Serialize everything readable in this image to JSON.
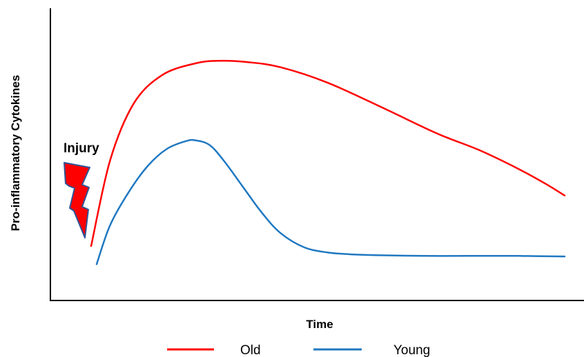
{
  "chart_data": {
    "type": "line",
    "xlabel": "Time",
    "ylabel": "Pro-inflammatory Cytokines",
    "xlim": [
      0,
      100
    ],
    "ylim": [
      0,
      100
    ],
    "grid": false,
    "legend": "bottom",
    "annotation": {
      "text": "Injury",
      "icon": "lightning-bolt-icon",
      "color": "#ff0000"
    },
    "series": [
      {
        "name": "Old",
        "color": "#ff0000",
        "x": [
          0,
          4,
          9,
          15,
          22,
          27,
          33,
          40,
          50,
          62,
          73,
          82,
          90,
          96,
          100
        ],
        "y": [
          21,
          54,
          76,
          87,
          91.5,
          92.5,
          92,
          90,
          84,
          74,
          64.5,
          58,
          51,
          45,
          40.5
        ]
      },
      {
        "name": "Young",
        "color": "#1f78c1",
        "x": [
          0,
          4,
          8,
          12,
          16,
          20,
          22,
          25,
          28,
          32,
          36,
          40,
          45,
          50,
          55,
          60,
          70,
          80,
          90,
          100
        ],
        "y": [
          14,
          29,
          42,
          52,
          58.5,
          61.5,
          61.8,
          60,
          54,
          44,
          34,
          26,
          20.5,
          18.5,
          17.8,
          17.5,
          17.2,
          17.2,
          17.2,
          17
        ]
      }
    ]
  }
}
